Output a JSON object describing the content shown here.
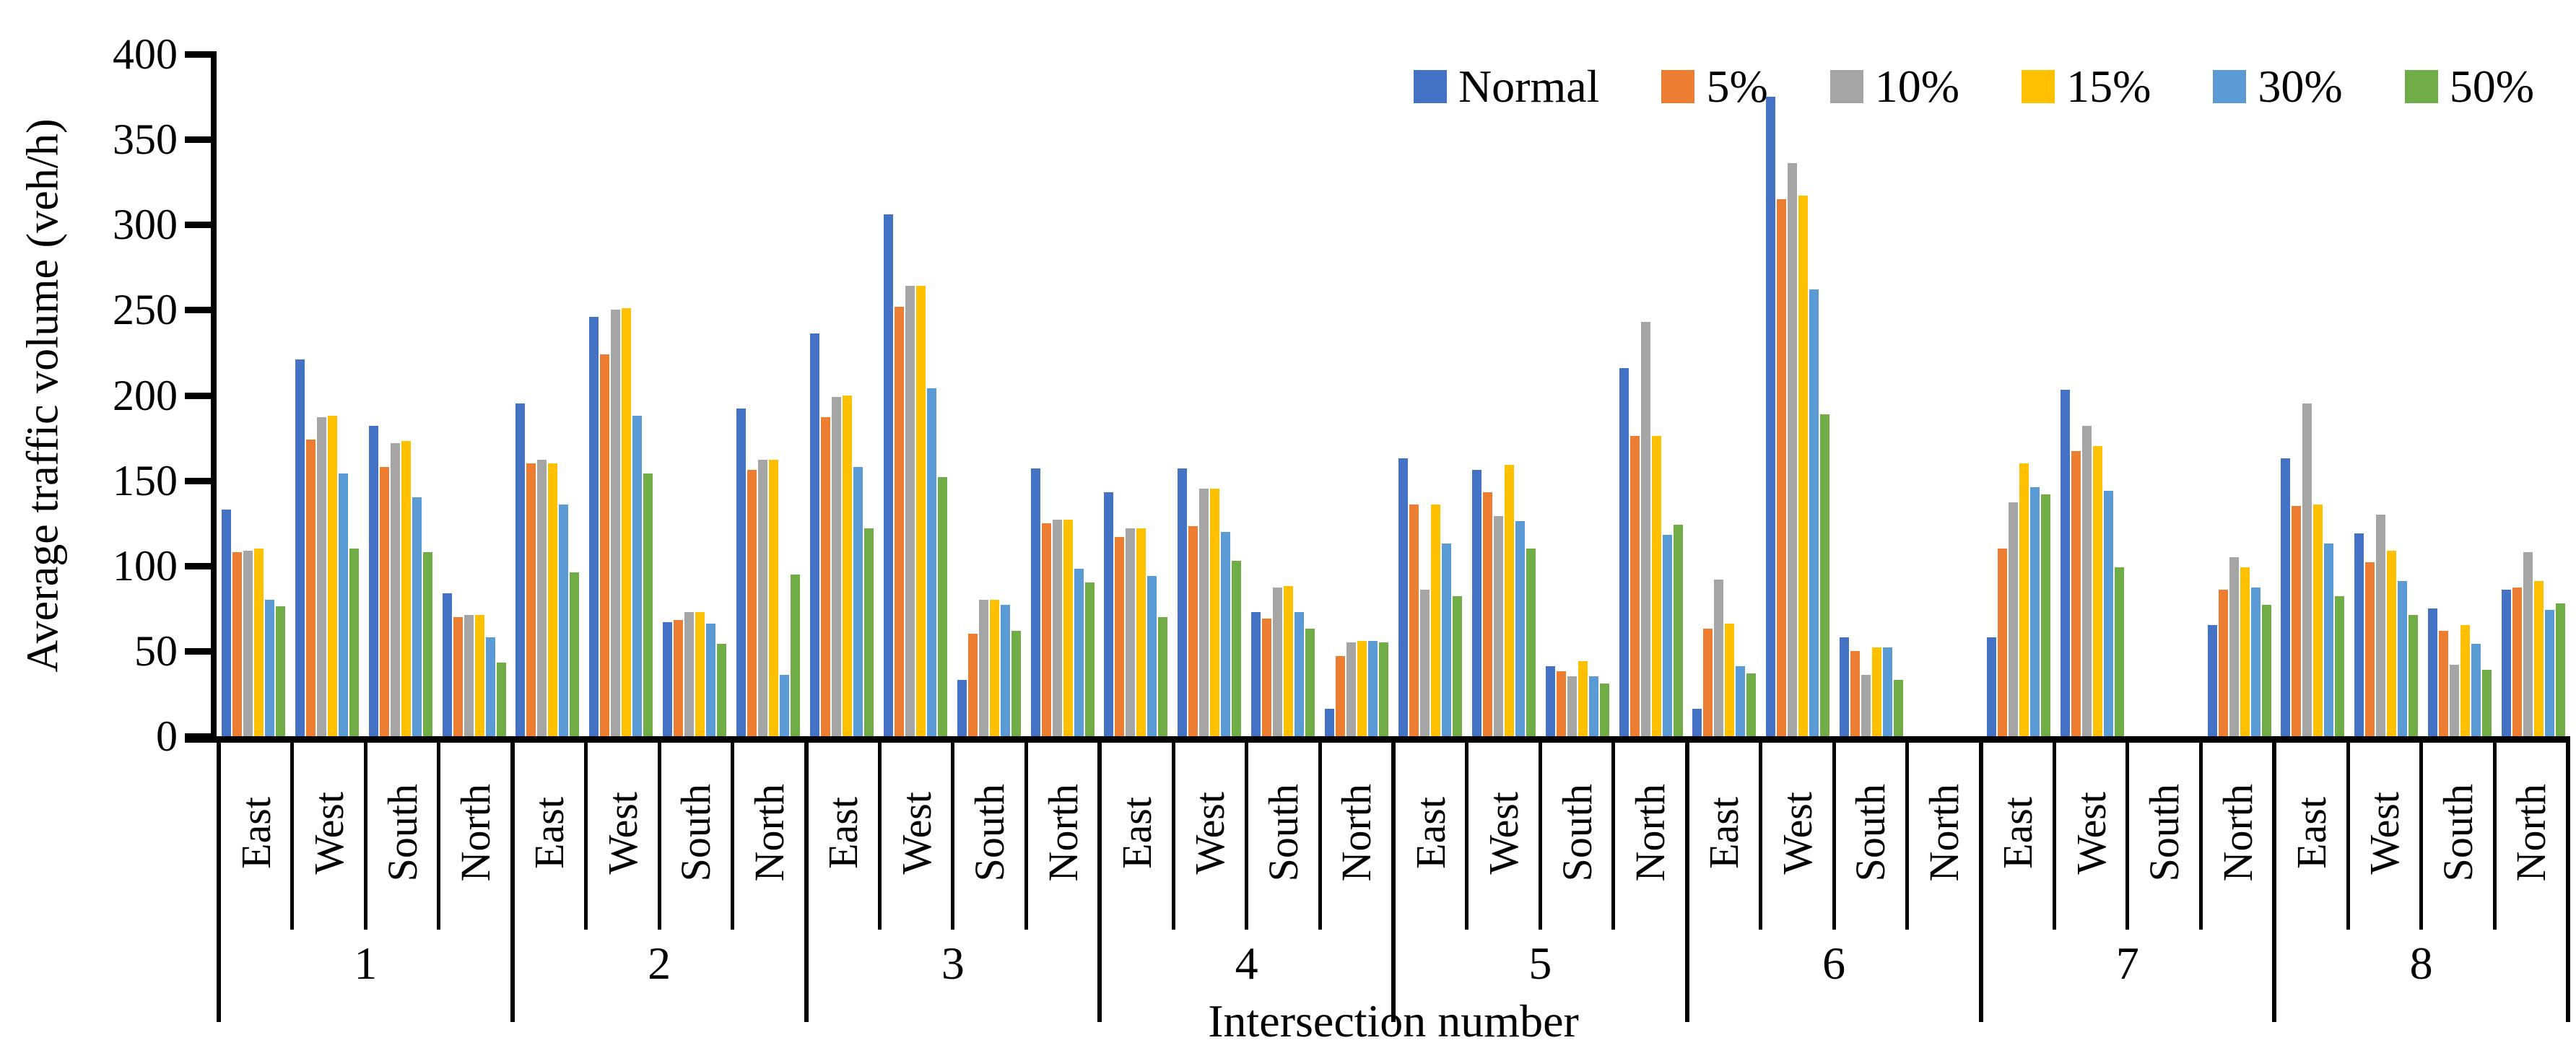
{
  "colors": {
    "axis": "#000000",
    "text": "#000000",
    "background": "#FFFFFF"
  },
  "chart_data": {
    "type": "bar",
    "title": "",
    "xlabel": "Intersection number",
    "ylabel": "Average traffic volume (veh/h)",
    "ylim": [
      0,
      400
    ],
    "ytick_step": 50,
    "grid": false,
    "legend_position": "top-right",
    "directions": [
      "East",
      "West",
      "South",
      "North"
    ],
    "series_names": [
      "Normal",
      "5%",
      "10%",
      "15%",
      "30%",
      "50%"
    ],
    "series_colors": [
      "#4472C4",
      "#ED7D31",
      "#A5A5A5",
      "#FFC000",
      "#5B9BD5",
      "#70AD47"
    ],
    "intersections": [
      {
        "label": "1",
        "East": [
          133,
          108,
          109,
          110,
          80,
          76
        ],
        "West": [
          221,
          174,
          187,
          188,
          154,
          110
        ],
        "South": [
          182,
          158,
          172,
          173,
          140,
          108
        ],
        "North": [
          84,
          70,
          71,
          71,
          58,
          43
        ]
      },
      {
        "label": "2",
        "East": [
          195,
          160,
          162,
          160,
          136,
          96
        ],
        "West": [
          246,
          224,
          250,
          251,
          188,
          154
        ],
        "South": [
          67,
          68,
          73,
          73,
          66,
          54
        ],
        "North": [
          192,
          156,
          162,
          162,
          36,
          95
        ]
      },
      {
        "label": "3",
        "East": [
          236,
          187,
          199,
          200,
          158,
          122
        ],
        "West": [
          306,
          252,
          264,
          264,
          204,
          152
        ],
        "South": [
          33,
          60,
          80,
          80,
          77,
          62
        ],
        "North": [
          157,
          125,
          127,
          127,
          98,
          90
        ]
      },
      {
        "label": "4",
        "East": [
          143,
          117,
          122,
          122,
          94,
          70
        ],
        "West": [
          157,
          123,
          145,
          145,
          120,
          103
        ],
        "South": [
          73,
          69,
          87,
          88,
          73,
          63
        ],
        "North": [
          16,
          47,
          55,
          56,
          56,
          55
        ]
      },
      {
        "label": "5",
        "East": [
          163,
          136,
          86,
          136,
          113,
          82
        ],
        "West": [
          156,
          143,
          129,
          159,
          126,
          110
        ],
        "South": [
          41,
          38,
          35,
          44,
          35,
          31
        ],
        "North": [
          216,
          176,
          243,
          176,
          118,
          124
        ]
      },
      {
        "label": "6",
        "East": [
          16,
          63,
          92,
          66,
          41,
          37
        ],
        "West": [
          375,
          315,
          336,
          317,
          262,
          189
        ],
        "South": [
          58,
          50,
          36,
          52,
          52,
          33
        ],
        "North": []
      },
      {
        "label": "7",
        "East": [
          58,
          110,
          137,
          160,
          146,
          142
        ],
        "West": [
          203,
          167,
          182,
          170,
          144,
          99
        ],
        "South": [],
        "North": [
          65,
          86,
          105,
          99,
          87,
          77
        ]
      },
      {
        "label": "8",
        "East": [
          163,
          135,
          195,
          136,
          113,
          82
        ],
        "West": [
          119,
          102,
          130,
          109,
          91,
          71
        ],
        "South": [
          75,
          62,
          42,
          65,
          54,
          39
        ],
        "North": [
          86,
          87,
          108,
          91,
          74,
          78
        ]
      }
    ]
  }
}
